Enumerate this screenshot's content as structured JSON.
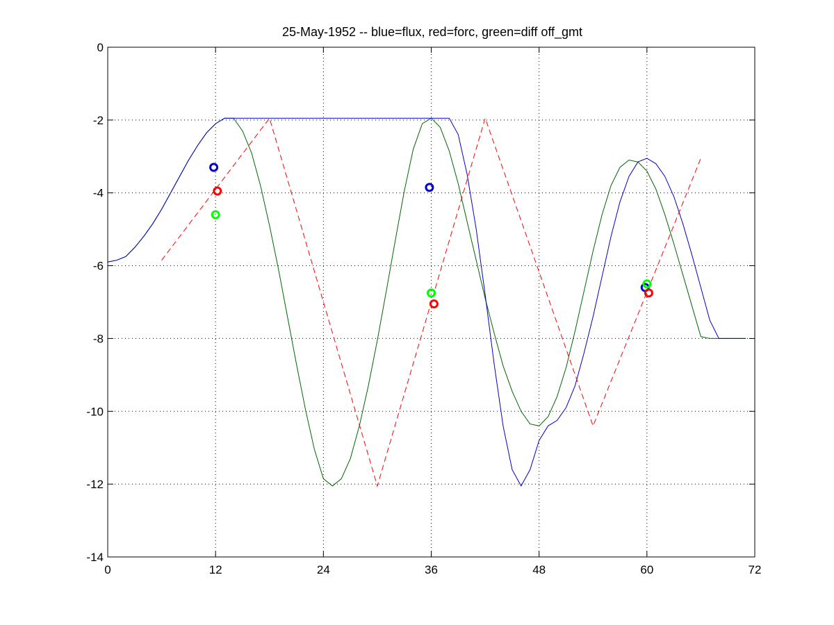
{
  "chart_data": {
    "type": "line",
    "title": "25-May-1952 -- blue=flux, red=forc, green=diff off_gmt",
    "xlabel": "",
    "ylabel": "",
    "xlim": [
      0,
      72
    ],
    "ylim": [
      -14,
      0
    ],
    "xticks": [
      0,
      12,
      24,
      36,
      48,
      60,
      72
    ],
    "yticks": [
      0,
      -2,
      -4,
      -6,
      -8,
      -10,
      -12,
      -14
    ],
    "grid": true,
    "colors": {
      "blue": "#0000cc",
      "red": "#ff0000",
      "green": "#006600",
      "marker_green": "#00ff00"
    },
    "series": [
      {
        "style": "solid",
        "color": "#006600",
        "x": [
          0,
          1,
          2,
          3,
          4,
          5,
          6,
          7,
          8,
          9,
          10,
          11,
          12,
          13,
          14,
          15,
          16,
          17,
          18,
          19,
          20,
          21,
          22,
          23,
          24,
          25,
          26,
          27,
          28,
          29,
          30,
          31,
          32,
          33,
          34,
          35,
          36,
          37,
          38,
          39,
          40,
          41,
          42,
          43,
          44,
          45,
          46,
          47,
          48,
          49,
          50,
          51,
          52,
          53,
          54,
          55,
          56,
          57,
          58,
          59,
          60,
          61,
          62,
          63,
          64,
          65,
          66,
          67,
          68,
          69,
          70,
          71
        ],
        "y": [
          -5.9,
          -5.85,
          -5.75,
          -5.5,
          -5.2,
          -4.85,
          -4.45,
          -4.0,
          -3.55,
          -3.1,
          -2.7,
          -2.35,
          -2.1,
          -1.95,
          -1.95,
          -2.3,
          -2.9,
          -3.8,
          -4.9,
          -6.1,
          -7.4,
          -8.7,
          -9.95,
          -11.05,
          -11.85,
          -12.05,
          -11.85,
          -11.3,
          -10.4,
          -9.3,
          -8.05,
          -6.7,
          -5.3,
          -3.95,
          -2.8,
          -2.1,
          -1.95,
          -2.2,
          -2.85,
          -3.75,
          -4.8,
          -5.85,
          -6.9,
          -7.85,
          -8.75,
          -9.45,
          -10.0,
          -10.35,
          -10.4,
          -10.15,
          -9.6,
          -8.8,
          -7.8,
          -6.7,
          -5.6,
          -4.6,
          -3.8,
          -3.3,
          -3.1,
          -3.15,
          -3.4,
          -3.9,
          -4.6,
          -5.4,
          -6.25,
          -7.1,
          -7.95,
          -8.0,
          -8.0,
          -8.0,
          -8.0,
          -8.0
        ]
      },
      {
        "style": "solid",
        "color": "#0000cc",
        "x": [
          0,
          1,
          2,
          3,
          4,
          5,
          6,
          7,
          8,
          9,
          10,
          11,
          12,
          13,
          14,
          15,
          16,
          17,
          18,
          19,
          20,
          21,
          22,
          23,
          24,
          25,
          26,
          27,
          28,
          29,
          30,
          31,
          32,
          33,
          34,
          35,
          36,
          37,
          38,
          39,
          40,
          41,
          42,
          43,
          44,
          45,
          46,
          47,
          48,
          49,
          50,
          51,
          52,
          53,
          54,
          55,
          56,
          57,
          58,
          59,
          60,
          61,
          62,
          63,
          64,
          65,
          66,
          67,
          68,
          69,
          70,
          71
        ],
        "y": [
          -5.9,
          -5.85,
          -5.75,
          -5.5,
          -5.2,
          -4.85,
          -4.45,
          -4.0,
          -3.55,
          -3.1,
          -2.7,
          -2.35,
          -2.1,
          -1.95,
          -1.95,
          -1.95,
          -1.95,
          -1.95,
          -1.95,
          -1.95,
          -1.95,
          -1.95,
          -1.95,
          -1.95,
          -1.95,
          -1.95,
          -1.95,
          -1.95,
          -1.95,
          -1.95,
          -1.95,
          -1.95,
          -1.95,
          -1.95,
          -1.95,
          -1.95,
          -1.95,
          -1.95,
          -1.95,
          -2.4,
          -3.5,
          -5.0,
          -6.8,
          -8.7,
          -10.4,
          -11.6,
          -12.05,
          -11.6,
          -10.8,
          -10.4,
          -10.25,
          -9.9,
          -9.3,
          -8.4,
          -7.4,
          -6.3,
          -5.2,
          -4.25,
          -3.55,
          -3.15,
          -3.05,
          -3.2,
          -3.55,
          -4.1,
          -4.85,
          -5.7,
          -6.6,
          -7.5,
          -8.0,
          -8.0,
          -8.0,
          -8.0
        ]
      },
      {
        "style": "dashed",
        "color": "#ff0000",
        "x": [
          6,
          18,
          30,
          42,
          54,
          66
        ],
        "y": [
          -5.85,
          -1.95,
          -12.05,
          -1.95,
          -10.4,
          -3.05
        ]
      }
    ],
    "markers": [
      {
        "x": 11.8,
        "y": -3.3,
        "color": "#0000cc"
      },
      {
        "x": 12.2,
        "y": -3.95,
        "color": "#ff0000"
      },
      {
        "x": 12.0,
        "y": -4.6,
        "color": "#00ff00"
      },
      {
        "x": 35.8,
        "y": -3.85,
        "color": "#0000cc"
      },
      {
        "x": 36.0,
        "y": -6.75,
        "color": "#00ff00"
      },
      {
        "x": 36.3,
        "y": -7.05,
        "color": "#ff0000"
      },
      {
        "x": 59.8,
        "y": -6.6,
        "color": "#0000cc"
      },
      {
        "x": 60.0,
        "y": -6.5,
        "color": "#00ff00"
      },
      {
        "x": 60.2,
        "y": -6.75,
        "color": "#ff0000"
      }
    ]
  }
}
